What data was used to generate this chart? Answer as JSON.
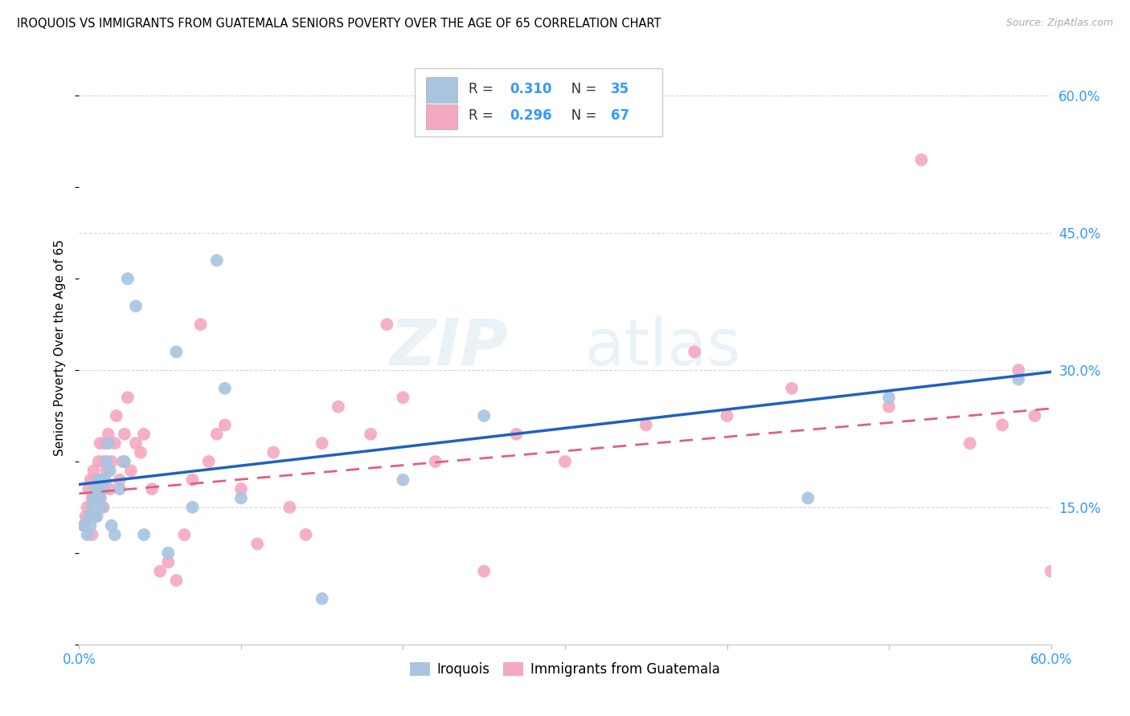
{
  "title": "IROQUOIS VS IMMIGRANTS FROM GUATEMALA SENIORS POVERTY OVER THE AGE OF 65 CORRELATION CHART",
  "source": "Source: ZipAtlas.com",
  "ylabel": "Seniors Poverty Over the Age of 65",
  "xlim": [
    0.0,
    0.6
  ],
  "ylim": [
    0.0,
    0.65
  ],
  "y_tick_labels_right": [
    "60.0%",
    "45.0%",
    "30.0%",
    "15.0%"
  ],
  "y_tick_positions_right": [
    0.6,
    0.45,
    0.3,
    0.15
  ],
  "R_iroquois": 0.31,
  "N_iroquois": 35,
  "R_guatemala": 0.296,
  "N_guatemala": 67,
  "color_iroquois": "#a8c4e0",
  "color_guatemala": "#f4a8c0",
  "color_line_iroquois": "#2060c0",
  "color_line_guatemala": "#e06080",
  "line_intercept_iroquois": 0.175,
  "line_slope_iroquois": 0.205,
  "line_intercept_guatemala": 0.165,
  "line_slope_guatemala": 0.155,
  "iroquois_x": [
    0.003,
    0.005,
    0.006,
    0.007,
    0.008,
    0.009,
    0.01,
    0.011,
    0.012,
    0.013,
    0.014,
    0.015,
    0.016,
    0.017,
    0.018,
    0.019,
    0.02,
    0.022,
    0.025,
    0.028,
    0.03,
    0.035,
    0.04,
    0.055,
    0.06,
    0.07,
    0.085,
    0.09,
    0.1,
    0.15,
    0.2,
    0.25,
    0.45,
    0.5,
    0.58
  ],
  "iroquois_y": [
    0.13,
    0.12,
    0.14,
    0.13,
    0.15,
    0.16,
    0.17,
    0.14,
    0.18,
    0.16,
    0.15,
    0.17,
    0.18,
    0.2,
    0.22,
    0.19,
    0.13,
    0.12,
    0.17,
    0.2,
    0.4,
    0.37,
    0.12,
    0.1,
    0.32,
    0.15,
    0.42,
    0.28,
    0.16,
    0.05,
    0.18,
    0.25,
    0.16,
    0.27,
    0.29
  ],
  "guatemala_x": [
    0.003,
    0.004,
    0.005,
    0.006,
    0.007,
    0.008,
    0.008,
    0.009,
    0.01,
    0.01,
    0.011,
    0.012,
    0.013,
    0.013,
    0.014,
    0.015,
    0.015,
    0.016,
    0.017,
    0.018,
    0.019,
    0.02,
    0.022,
    0.023,
    0.025,
    0.027,
    0.028,
    0.03,
    0.032,
    0.035,
    0.038,
    0.04,
    0.045,
    0.05,
    0.055,
    0.06,
    0.065,
    0.07,
    0.075,
    0.08,
    0.085,
    0.09,
    0.1,
    0.11,
    0.12,
    0.13,
    0.14,
    0.15,
    0.16,
    0.18,
    0.19,
    0.2,
    0.22,
    0.25,
    0.27,
    0.3,
    0.35,
    0.38,
    0.4,
    0.44,
    0.5,
    0.52,
    0.55,
    0.57,
    0.58,
    0.59,
    0.6
  ],
  "guatemala_y": [
    0.13,
    0.14,
    0.15,
    0.17,
    0.18,
    0.12,
    0.16,
    0.19,
    0.14,
    0.18,
    0.17,
    0.2,
    0.22,
    0.16,
    0.18,
    0.2,
    0.15,
    0.22,
    0.19,
    0.23,
    0.17,
    0.2,
    0.22,
    0.25,
    0.18,
    0.2,
    0.23,
    0.27,
    0.19,
    0.22,
    0.21,
    0.23,
    0.17,
    0.08,
    0.09,
    0.07,
    0.12,
    0.18,
    0.35,
    0.2,
    0.23,
    0.24,
    0.17,
    0.11,
    0.21,
    0.15,
    0.12,
    0.22,
    0.26,
    0.23,
    0.35,
    0.27,
    0.2,
    0.08,
    0.23,
    0.2,
    0.24,
    0.32,
    0.25,
    0.28,
    0.26,
    0.53,
    0.22,
    0.24,
    0.3,
    0.25,
    0.08
  ]
}
